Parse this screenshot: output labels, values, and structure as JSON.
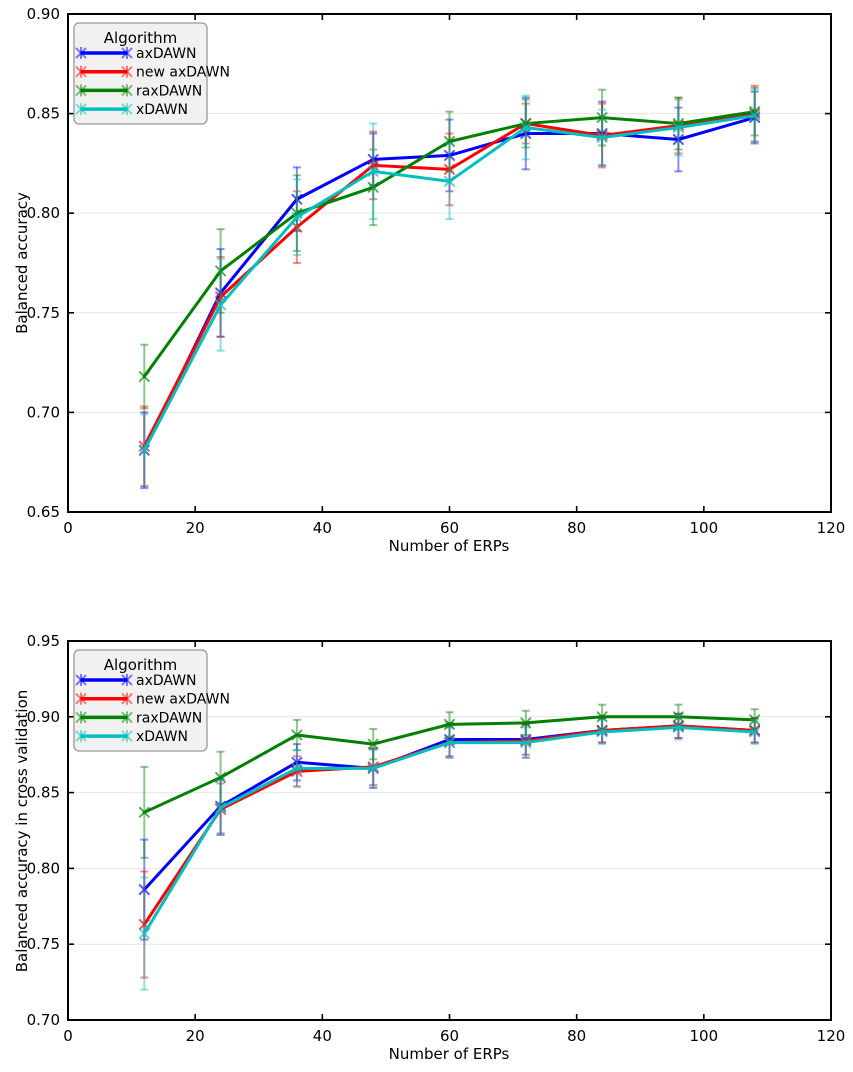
{
  "figure": {
    "background": "#ffffff",
    "grid_color": "#e5e5e5",
    "spine_color": "#000000"
  },
  "chart_data": [
    {
      "type": "line",
      "title": "",
      "xlabel": "Number of ERPs",
      "ylabel": "Balanced accuracy",
      "xlim": [
        0,
        120
      ],
      "ylim": [
        0.65,
        0.9
      ],
      "xticks": [
        0,
        20,
        40,
        60,
        80,
        100,
        120
      ],
      "yticks": [
        0.65,
        0.7,
        0.75,
        0.8,
        0.85,
        0.9
      ],
      "xtick_labels": [
        "0",
        "20",
        "40",
        "60",
        "80",
        "100",
        "120"
      ],
      "ytick_labels": [
        "0.65",
        "0.70",
        "0.75",
        "0.80",
        "0.85",
        "0.90"
      ],
      "grid": "horizontal",
      "legend": {
        "title": "Algorithm",
        "position": "upper left"
      },
      "x": [
        12,
        24,
        36,
        48,
        60,
        72,
        84,
        96,
        108
      ],
      "series": [
        {
          "name": "axDAWN",
          "color": "#0000ff",
          "values": [
            0.681,
            0.76,
            0.807,
            0.827,
            0.829,
            0.84,
            0.84,
            0.837,
            0.848
          ],
          "errors": [
            0.019,
            0.022,
            0.016,
            0.013,
            0.018,
            0.018,
            0.016,
            0.016,
            0.013
          ]
        },
        {
          "name": "new axDAWN",
          "color": "#ff0000",
          "values": [
            0.683,
            0.758,
            0.793,
            0.824,
            0.822,
            0.845,
            0.839,
            0.844,
            0.85
          ],
          "errors": [
            0.02,
            0.02,
            0.018,
            0.017,
            0.018,
            0.01,
            0.016,
            0.014,
            0.014
          ]
        },
        {
          "name": "raxDAWN",
          "color": "#008000",
          "values": [
            0.718,
            0.771,
            0.8,
            0.813,
            0.836,
            0.845,
            0.848,
            0.845,
            0.851
          ],
          "errors": [
            0.016,
            0.021,
            0.019,
            0.019,
            0.015,
            0.012,
            0.014,
            0.013,
            0.012
          ]
        },
        {
          "name": "xDAWN",
          "color": "#00bfbf",
          "values": [
            0.681,
            0.754,
            0.798,
            0.821,
            0.816,
            0.843,
            0.838,
            0.843,
            0.849
          ],
          "errors": [
            0.018,
            0.023,
            0.019,
            0.024,
            0.019,
            0.016,
            0.014,
            0.014,
            0.013
          ]
        }
      ]
    },
    {
      "type": "line",
      "title": "",
      "xlabel": "Number of ERPs",
      "ylabel": "Balanced accuracy in cross validation",
      "xlim": [
        0,
        120
      ],
      "ylim": [
        0.7,
        0.95
      ],
      "xticks": [
        0,
        20,
        40,
        60,
        80,
        100,
        120
      ],
      "yticks": [
        0.7,
        0.75,
        0.8,
        0.85,
        0.9,
        0.95
      ],
      "xtick_labels": [
        "0",
        "20",
        "40",
        "60",
        "80",
        "100",
        "120"
      ],
      "ytick_labels": [
        "0.70",
        "0.75",
        "0.80",
        "0.85",
        "0.90",
        "0.95"
      ],
      "grid": "horizontal",
      "legend": {
        "title": "Algorithm",
        "position": "upper left"
      },
      "x": [
        12,
        24,
        36,
        48,
        60,
        72,
        84,
        96,
        108
      ],
      "series": [
        {
          "name": "axDAWN",
          "color": "#0000ff",
          "values": [
            0.786,
            0.841,
            0.87,
            0.866,
            0.885,
            0.885,
            0.891,
            0.894,
            0.891
          ],
          "errors": [
            0.033,
            0.018,
            0.012,
            0.013,
            0.011,
            0.01,
            0.008,
            0.008,
            0.008
          ]
        },
        {
          "name": "new axDAWN",
          "color": "#ff0000",
          "values": [
            0.763,
            0.839,
            0.864,
            0.867,
            0.883,
            0.884,
            0.891,
            0.894,
            0.891
          ],
          "errors": [
            0.035,
            0.017,
            0.01,
            0.012,
            0.01,
            0.011,
            0.008,
            0.008,
            0.008
          ]
        },
        {
          "name": "raxDAWN",
          "color": "#008000",
          "values": [
            0.837,
            0.86,
            0.888,
            0.882,
            0.895,
            0.896,
            0.9,
            0.9,
            0.898
          ],
          "errors": [
            0.03,
            0.017,
            0.01,
            0.01,
            0.008,
            0.008,
            0.008,
            0.008,
            0.007
          ]
        },
        {
          "name": "xDAWN",
          "color": "#00bfbf",
          "values": [
            0.757,
            0.84,
            0.866,
            0.866,
            0.883,
            0.883,
            0.89,
            0.893,
            0.89
          ],
          "errors": [
            0.037,
            0.018,
            0.012,
            0.012,
            0.01,
            0.01,
            0.008,
            0.008,
            0.008
          ]
        }
      ]
    }
  ]
}
